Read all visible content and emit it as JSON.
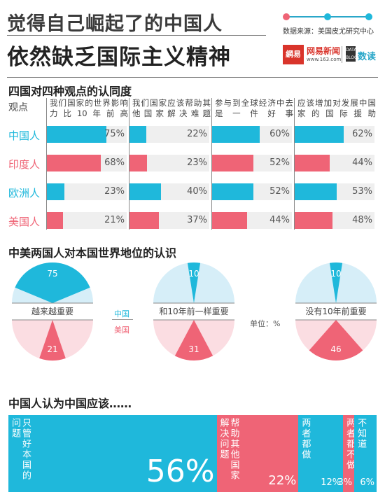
{
  "header": {
    "title_line1": "觉得自己崛起了的中国人",
    "title_line2": "依然缺乏国际主义精神",
    "source": "数据来源：美国皮尤研究中心",
    "logo_box": "網易",
    "logo_name": "网易新闻",
    "logo_url": "www.163.com",
    "logo_dd": "DATA BLOG",
    "logo_sd": "数读"
  },
  "colors": {
    "china": "#1fb8db",
    "other": "#ef6476",
    "china_light": "#d6eef8",
    "other_light": "#fbdde2",
    "cell_bg": "#efefef"
  },
  "section1": {
    "title": "四国对四种观点的认同度",
    "view_label": "观点",
    "columns": [
      "我们国家的世界影响力比10年前高",
      "我们国家应该帮助其他国家解决难题",
      "参与到全球经济中去是一件好事",
      "应该增加对发展中国家的国际援助"
    ],
    "rows": [
      {
        "label": "中国人",
        "color": "china",
        "pct_labels": [
          "75%",
          "22%",
          "60%",
          "62%"
        ]
      },
      {
        "label": "印度人",
        "color": "other",
        "pct_labels": [
          "68%",
          "23%",
          "52%",
          "44%"
        ]
      },
      {
        "label": "欧洲人",
        "color": "china",
        "pct_labels": [
          "23%",
          "40%",
          "52%",
          "53%"
        ]
      },
      {
        "label": "美国人",
        "color": "other",
        "pct_labels": [
          "21%",
          "37%",
          "44%",
          "48%"
        ]
      }
    ]
  },
  "section2": {
    "title": "中美两国人对本国世界地位的认识",
    "legend_china": "中国",
    "legend_usa": "美国",
    "unit": "单位：%",
    "items": [
      {
        "label": "越来越重要",
        "china_label": "75",
        "usa_label": "21"
      },
      {
        "label": "和10年前一样重要",
        "china_label": "10",
        "usa_label": "31"
      },
      {
        "label": "没有10年前重要",
        "china_label": "10",
        "usa_label": "46"
      }
    ]
  },
  "section3": {
    "title": "中国人认为中国应该……",
    "segments": [
      {
        "text": "只管好本国的问题",
        "pct_label": "56%"
      },
      {
        "text": "帮助其他国家解决问题",
        "pct_label": "22%"
      },
      {
        "text": "两者都做",
        "pct_label": "12%"
      },
      {
        "text": "两者都不做",
        "pct_label": "3%"
      },
      {
        "text": "不知道",
        "pct_label": "6%"
      }
    ]
  },
  "chart_data": [
    {
      "type": "bar",
      "title": "四国对四种观点的认同度",
      "categories": [
        "我们国家的世界影响力比10年前高",
        "我们国家应该帮助其他国家解决难题",
        "参与到全球经济中去是一件好事",
        "应该增加对发展中国家的国际援助"
      ],
      "series": [
        {
          "name": "中国人",
          "values": [
            75,
            22,
            60,
            62
          ]
        },
        {
          "name": "印度人",
          "values": [
            68,
            23,
            52,
            44
          ]
        },
        {
          "name": "欧洲人",
          "values": [
            23,
            40,
            52,
            53
          ]
        },
        {
          "name": "美国人",
          "values": [
            21,
            37,
            44,
            48
          ]
        }
      ],
      "ylim": [
        0,
        100
      ]
    },
    {
      "type": "pie",
      "title": "中美两国人对本国世界地位的认识",
      "categories": [
        "越来越重要",
        "和10年前一样重要",
        "没有10年前重要"
      ],
      "series": [
        {
          "name": "中国",
          "values": [
            75,
            10,
            10
          ]
        },
        {
          "name": "美国",
          "values": [
            21,
            31,
            46
          ]
        }
      ]
    },
    {
      "type": "bar",
      "title": "中国人认为中国应该……",
      "categories": [
        "只管好本国的问题",
        "帮助其他国家解决问题",
        "两者都做",
        "两者都不做",
        "不知道"
      ],
      "values": [
        56,
        22,
        12,
        3,
        6
      ]
    }
  ]
}
